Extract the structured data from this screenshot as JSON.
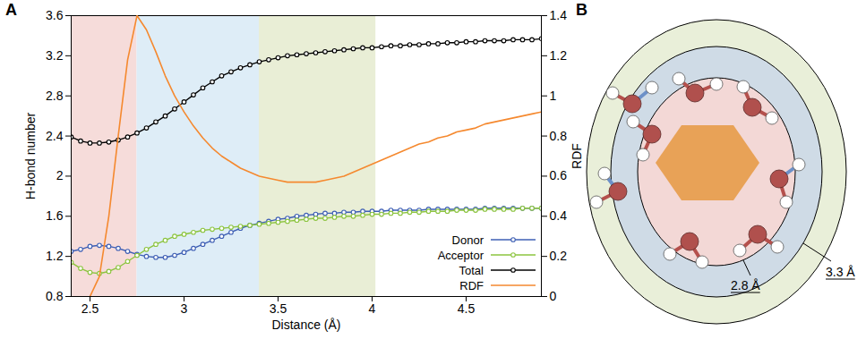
{
  "chart_data": {
    "type": "line",
    "panel": "A",
    "x_label": "Distance (Å)",
    "y_label": "H-bond number",
    "y2_label": "RDF",
    "xlim": [
      2.4,
      4.9
    ],
    "xticks": [
      2.5,
      3,
      3.5,
      4,
      4.5
    ],
    "ylim": [
      0.8,
      3.6
    ],
    "yticks": [
      0.8,
      1.2,
      1.6,
      2,
      2.4,
      2.8,
      3.2,
      3.6
    ],
    "y2lim": [
      0,
      1.4
    ],
    "y2ticks": [
      0,
      0.2,
      0.4,
      0.6,
      0.8,
      1,
      1.2,
      1.4
    ],
    "legend": "lower right",
    "shaded_ranges": [
      {
        "x0": 2.4,
        "x1": 2.75,
        "color": "#f6dcda"
      },
      {
        "x0": 2.75,
        "x1": 3.4,
        "color": "#deedf7"
      },
      {
        "x0": 3.4,
        "x1": 4.02,
        "color": "#e9eed6"
      }
    ],
    "x": [
      2.4,
      2.45,
      2.5,
      2.55,
      2.6,
      2.65,
      2.7,
      2.75,
      2.8,
      2.85,
      2.9,
      2.95,
      3,
      3.05,
      3.1,
      3.15,
      3.2,
      3.25,
      3.3,
      3.35,
      3.4,
      3.45,
      3.5,
      3.55,
      3.6,
      3.65,
      3.7,
      3.75,
      3.8,
      3.85,
      3.9,
      3.95,
      4,
      4.05,
      4.1,
      4.15,
      4.2,
      4.25,
      4.3,
      4.35,
      4.4,
      4.45,
      4.5,
      4.55,
      4.6,
      4.65,
      4.7,
      4.75,
      4.8,
      4.85,
      4.9
    ],
    "series": [
      {
        "name": "Donor",
        "color": "#3e5fb4",
        "marker": "circle",
        "line_style": "solid",
        "values": [
          1.25,
          1.27,
          1.3,
          1.31,
          1.3,
          1.28,
          1.25,
          1.22,
          1.2,
          1.19,
          1.19,
          1.21,
          1.24,
          1.28,
          1.32,
          1.36,
          1.4,
          1.44,
          1.48,
          1.51,
          1.53,
          1.55,
          1.57,
          1.58,
          1.6,
          1.61,
          1.62,
          1.63,
          1.63,
          1.64,
          1.64,
          1.65,
          1.65,
          1.65,
          1.66,
          1.66,
          1.66,
          1.66,
          1.67,
          1.67,
          1.67,
          1.67,
          1.67,
          1.67,
          1.68,
          1.68,
          1.68,
          1.68,
          1.68,
          1.68,
          1.68
        ]
      },
      {
        "name": "Acceptor",
        "color": "#8cc43f",
        "marker": "circle",
        "line_style": "solid",
        "values": [
          1.14,
          1.08,
          1.04,
          1.03,
          1.05,
          1.09,
          1.15,
          1.21,
          1.27,
          1.32,
          1.36,
          1.4,
          1.42,
          1.44,
          1.46,
          1.47,
          1.48,
          1.49,
          1.5,
          1.51,
          1.52,
          1.53,
          1.54,
          1.55,
          1.56,
          1.57,
          1.58,
          1.58,
          1.59,
          1.6,
          1.6,
          1.61,
          1.62,
          1.62,
          1.63,
          1.63,
          1.64,
          1.64,
          1.65,
          1.65,
          1.65,
          1.66,
          1.66,
          1.66,
          1.67,
          1.67,
          1.67,
          1.67,
          1.68,
          1.68,
          1.68
        ]
      },
      {
        "name": "Total",
        "color": "#000000",
        "marker": "circle",
        "line_style": "solid",
        "values": [
          2.39,
          2.35,
          2.33,
          2.33,
          2.34,
          2.36,
          2.39,
          2.43,
          2.48,
          2.54,
          2.6,
          2.67,
          2.74,
          2.81,
          2.88,
          2.94,
          3.0,
          3.04,
          3.08,
          3.11,
          3.14,
          3.16,
          3.18,
          3.2,
          3.21,
          3.22,
          3.23,
          3.24,
          3.25,
          3.26,
          3.27,
          3.28,
          3.28,
          3.29,
          3.3,
          3.3,
          3.31,
          3.31,
          3.32,
          3.32,
          3.33,
          3.33,
          3.34,
          3.34,
          3.35,
          3.35,
          3.35,
          3.36,
          3.36,
          3.36,
          3.37
        ]
      },
      {
        "name": "RDF",
        "color": "#f5892f",
        "marker": "none",
        "line_style": "solid",
        "axis": "y2",
        "values": [
          null,
          null,
          0,
          0.1,
          0.4,
          0.8,
          1.18,
          1.4,
          1.33,
          1.22,
          1.1,
          1.0,
          0.92,
          0.85,
          0.79,
          0.74,
          0.7,
          0.67,
          0.64,
          0.62,
          0.6,
          0.59,
          0.58,
          0.57,
          0.57,
          0.57,
          0.57,
          0.58,
          0.59,
          0.6,
          0.62,
          0.64,
          0.66,
          0.68,
          0.7,
          0.72,
          0.74,
          0.76,
          0.77,
          0.79,
          0.8,
          0.82,
          0.83,
          0.84,
          0.86,
          0.87,
          0.88,
          0.89,
          0.9,
          0.91,
          0.92
        ]
      }
    ]
  },
  "diagram": {
    "panel": "B",
    "shell_labels": [
      "2.8 Å",
      "3.3 Å"
    ]
  }
}
